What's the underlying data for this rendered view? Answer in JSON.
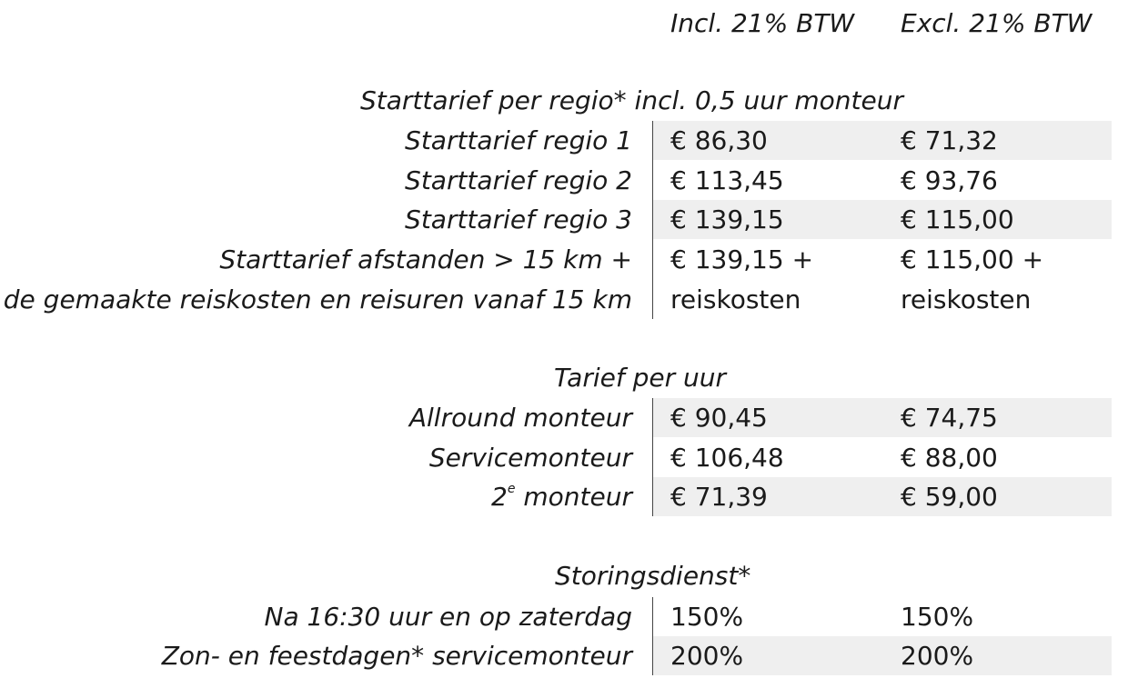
{
  "header": {
    "incl": "Incl. 21% BTW",
    "excl": "Excl. 21% BTW"
  },
  "sections": [
    {
      "title": "Starttarief per regio* incl. 0,5 uur monteur",
      "rows": [
        {
          "label": "Starttarief regio 1",
          "incl": "€ 86,30",
          "excl": "€ 71,32",
          "shaded": true
        },
        {
          "label": "Starttarief regio 2",
          "incl": "€ 113,45",
          "excl": "€ 93,76",
          "shaded": false
        },
        {
          "label": "Starttarief regio 3",
          "incl": "€ 139,15",
          "excl": "€ 115,00",
          "shaded": true
        },
        {
          "label": "Starttarief afstanden > 15 km +",
          "label_line2": "de gemaakte reiskosten en reisuren vanaf 15 km",
          "incl": "€ 139,15 +",
          "incl_line2": "reiskosten",
          "excl": "€ 115,00 +",
          "excl_line2": "reiskosten",
          "shaded": false
        }
      ]
    },
    {
      "title": "Tarief per uur",
      "rows": [
        {
          "label": "Allround monteur",
          "incl": "€ 90,45",
          "excl": "€ 74,75",
          "shaded": true
        },
        {
          "label": "Servicemonteur",
          "incl": "€ 106,48",
          "excl": "€ 88,00",
          "shaded": false
        },
        {
          "label_prefix": "2",
          "label_sup": "e",
          "label_suffix": " monteur",
          "incl": "€ 71,39",
          "excl": "€ 59,00",
          "shaded": true
        }
      ]
    },
    {
      "title": "Storingsdienst*",
      "rows": [
        {
          "label": "Na 16:30 uur en op zaterdag",
          "incl": "150%",
          "excl": "150%",
          "shaded": false
        },
        {
          "label": "Zon- en feestdagen* servicemonteur",
          "incl": "200%",
          "excl": "200%",
          "shaded": true
        }
      ]
    }
  ]
}
